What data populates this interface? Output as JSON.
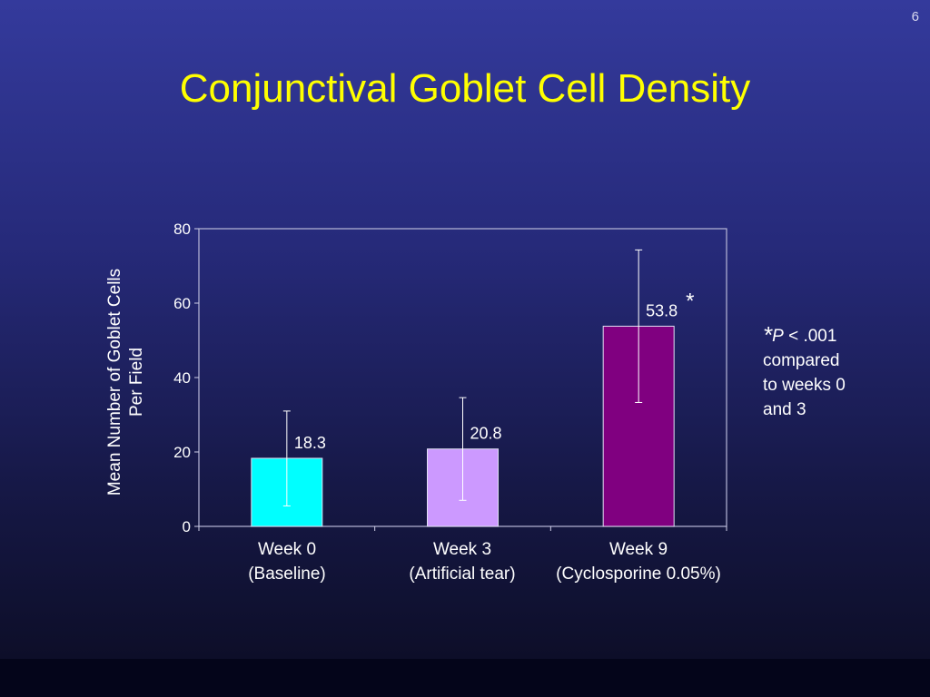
{
  "page_number": "6",
  "title": {
    "highlight": "Conjunctival",
    "rest": "Goblet Cell Density"
  },
  "footnote": {
    "star": "*",
    "p_symbol": "P",
    "rest": " < .001",
    "line2": "compared",
    "line3": "to weeks 0",
    "line4": "and 3"
  },
  "chart_data": {
    "type": "bar",
    "title": "Conjunctival Goblet Cell Density",
    "ylabel": "Mean Number of Goblet Cells Per Field",
    "xlabel": "",
    "ylim": [
      0,
      80
    ],
    "yticks": [
      0,
      20,
      40,
      60,
      80
    ],
    "grid": false,
    "categories": [
      [
        "Week 0",
        "(Baseline)"
      ],
      [
        "Week 3",
        "(Artificial tear)"
      ],
      [
        "Week 9",
        "(Cyclosporine 0.05%)"
      ]
    ],
    "values": [
      18.3,
      20.8,
      53.8
    ],
    "value_labels": [
      "18.3",
      "20.8",
      "53.8"
    ],
    "error_bars": [
      [
        5.5,
        31.0
      ],
      [
        7.0,
        34.6
      ],
      [
        33.3,
        74.3
      ]
    ],
    "annotations": [
      "",
      "",
      "*"
    ],
    "colors": [
      "#00ffff",
      "#cc99ff",
      "#800080"
    ]
  }
}
